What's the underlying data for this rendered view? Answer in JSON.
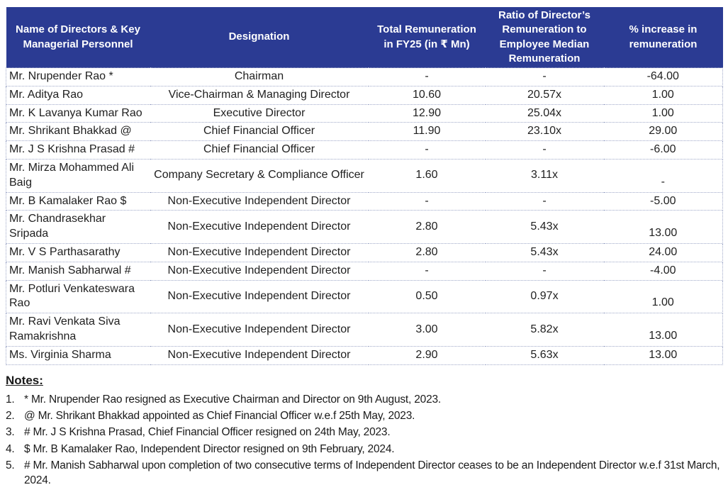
{
  "colors": {
    "header_bg": "#2b3b93",
    "header_text": "#ffffff",
    "dotted_border": "#9fa8c8",
    "body_text": "#1f1f1f"
  },
  "table": {
    "headers": [
      "Name of Directors & Key Managerial Personnel",
      "Designation",
      "Total Remuneration in FY25 (in ₹ Mn)",
      "Ratio of Director’s Remuneration to Employee Median Remuneration",
      "% increase in remuneration"
    ],
    "rows": [
      {
        "name": "Mr. Nrupender Rao *",
        "designation": "Chairman",
        "remuneration": "-",
        "ratio": "-",
        "increase": "-64.00"
      },
      {
        "name": "Mr. Aditya Rao",
        "designation": "Vice-Chairman & Managing Director",
        "remuneration": "10.60",
        "ratio": "20.57x",
        "increase": "1.00"
      },
      {
        "name": "Mr. K Lavanya Kumar Rao",
        "designation": "Executive Director",
        "remuneration": "12.90",
        "ratio": "25.04x",
        "increase": "1.00"
      },
      {
        "name": "Mr. Shrikant Bhakkad @",
        "designation": "Chief Financial Officer",
        "remuneration": "11.90",
        "ratio": "23.10x",
        "increase": "29.00"
      },
      {
        "name": "Mr. J S Krishna Prasad #",
        "designation": "Chief Financial Officer",
        "remuneration": "-",
        "ratio": "-",
        "increase": "-6.00"
      },
      {
        "name": "Mr. Mirza Mohammed Ali Baig",
        "designation": "Company Secretary & Compliance Officer",
        "remuneration": "1.60",
        "ratio": "3.11x",
        "increase": "-"
      },
      {
        "name": "Mr. B Kamalaker Rao $",
        "designation": "Non-Executive Independent Director",
        "remuneration": "-",
        "ratio": "-",
        "increase": "-5.00"
      },
      {
        "name": "Mr. Chandrasekhar Sripada",
        "designation": "Non-Executive Independent Director",
        "remuneration": "2.80",
        "ratio": "5.43x",
        "increase": "13.00"
      },
      {
        "name": "Mr. V S Parthasarathy",
        "designation": "Non-Executive Independent Director",
        "remuneration": "2.80",
        "ratio": "5.43x",
        "increase": "24.00"
      },
      {
        "name": "Mr. Manish Sabharwal #",
        "designation": "Non-Executive Independent Director",
        "remuneration": "-",
        "ratio": "-",
        "increase": "-4.00"
      },
      {
        "name": "Mr. Potluri Venkateswara Rao",
        "designation": "Non-Executive Independent Director",
        "remuneration": "0.50",
        "ratio": "0.97x",
        "increase": "1.00"
      },
      {
        "name": "Mr. Ravi Venkata Siva Ramakrishna",
        "designation": "Non-Executive Independent Director",
        "remuneration": "3.00",
        "ratio": "5.82x",
        "increase": "13.00"
      },
      {
        "name": "Ms. Virginia Sharma",
        "designation": "Non-Executive Independent Director",
        "remuneration": "2.90",
        "ratio": "5.63x",
        "increase": "13.00"
      }
    ]
  },
  "notes": {
    "title": "Notes:",
    "items": [
      {
        "num": "1.",
        "text": "* Mr. Nrupender Rao resigned as Executive Chairman and Director on 9th August, 2023."
      },
      {
        "num": "2.",
        "text": "@ Mr. Shrikant Bhakkad appointed as Chief Financial Officer w.e.f 25th May, 2023."
      },
      {
        "num": "3.",
        "text": "# Mr. J S Krishna Prasad, Chief Financial Officer resigned on 24th May, 2023."
      },
      {
        "num": "4.",
        "text": "$ Mr. B Kamalaker Rao, Independent Director resigned on 9th February, 2024."
      },
      {
        "num": "5.",
        "text": "# Mr. Manish Sabharwal upon completion of two consecutive terms of Independent Director ceases to be an Independent Director w.e.f 31st March, 2024."
      }
    ]
  }
}
